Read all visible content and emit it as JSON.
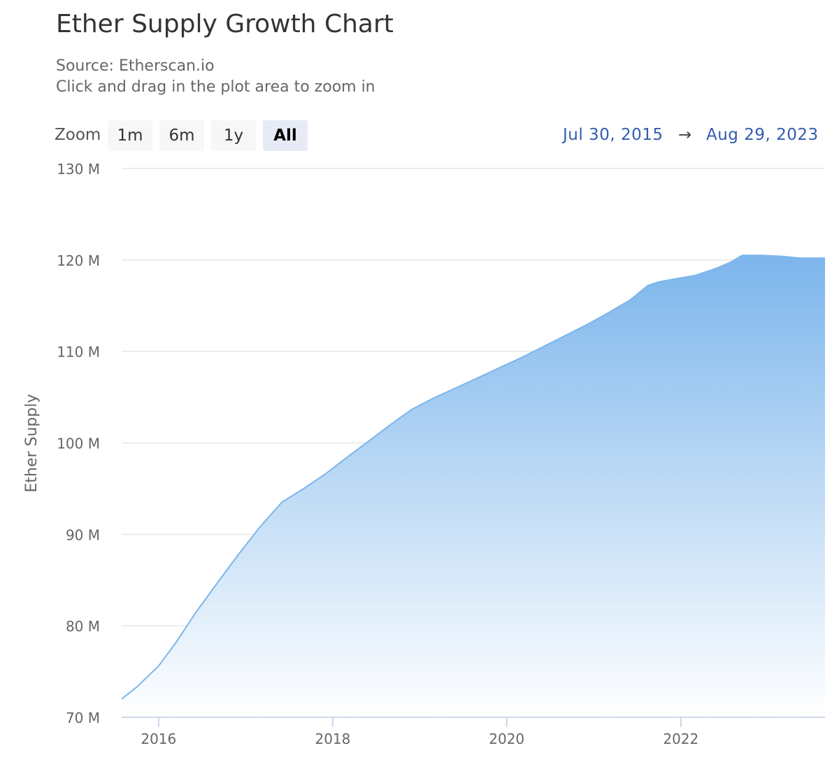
{
  "title": "Ether Supply Growth Chart",
  "subtitle": {
    "source": "Source: Etherscan.io",
    "hint": "Click and drag in the plot area to zoom in"
  },
  "zoom": {
    "label": "Zoom",
    "buttons": [
      "1m",
      "6m",
      "1y",
      "All"
    ],
    "selected": "All"
  },
  "range": {
    "from": "Jul 30, 2015",
    "arrow": "→",
    "to": "Aug 29, 2023"
  },
  "colors": {
    "series_line": "#7cb5ec",
    "fill_top": "#7cb5ec",
    "fill_bottom": "#ffffff",
    "grid": "#e6e6e6",
    "axis_line": "#ccd6eb",
    "range_text": "#335cad"
  },
  "chart_data": {
    "type": "area",
    "title": "Ether Supply Growth Chart",
    "subtitle": "Source: Etherscan.io",
    "ylabel": "Ether Supply",
    "xlabel": "",
    "ylim": [
      70000000,
      130000000
    ],
    "yticks": [
      70000000,
      80000000,
      90000000,
      100000000,
      110000000,
      120000000,
      130000000
    ],
    "ytick_labels": [
      "70 M",
      "80 M",
      "90 M",
      "100 M",
      "110 M",
      "120 M",
      "130 M"
    ],
    "xlim": [
      "2015-07-30",
      "2023-08-29"
    ],
    "xticks": [
      "2016-01-01",
      "2018-01-01",
      "2020-01-01",
      "2022-01-01"
    ],
    "xtick_labels": [
      "2016",
      "2018",
      "2020",
      "2022"
    ],
    "grid": "horizontal",
    "legend": "none",
    "series": [
      {
        "values": [
          [
            "2015-07-30",
            72000000
          ],
          [
            "2015-10-01",
            73300000
          ],
          [
            "2016-01-01",
            75600000
          ],
          [
            "2016-03-15",
            78200000
          ],
          [
            "2016-06-01",
            81300000
          ],
          [
            "2016-09-01",
            84600000
          ],
          [
            "2016-12-01",
            87800000
          ],
          [
            "2017-03-01",
            90800000
          ],
          [
            "2017-06-01",
            93500000
          ],
          [
            "2017-09-01",
            95000000
          ],
          [
            "2017-12-01",
            96600000
          ],
          [
            "2018-03-01",
            98400000
          ],
          [
            "2018-06-01",
            100200000
          ],
          [
            "2018-09-01",
            102000000
          ],
          [
            "2018-12-01",
            103700000
          ],
          [
            "2019-03-01",
            104900000
          ],
          [
            "2019-06-01",
            106000000
          ],
          [
            "2019-09-01",
            107100000
          ],
          [
            "2019-12-01",
            108200000
          ],
          [
            "2020-03-01",
            109300000
          ],
          [
            "2020-06-01",
            110500000
          ],
          [
            "2020-09-01",
            111700000
          ],
          [
            "2020-12-01",
            112900000
          ],
          [
            "2021-03-01",
            114200000
          ],
          [
            "2021-06-01",
            115600000
          ],
          [
            "2021-08-15",
            117200000
          ],
          [
            "2021-10-01",
            117600000
          ],
          [
            "2021-12-01",
            117900000
          ],
          [
            "2022-03-01",
            118300000
          ],
          [
            "2022-06-01",
            119100000
          ],
          [
            "2022-08-01",
            119800000
          ],
          [
            "2022-09-15",
            120500000
          ],
          [
            "2022-12-01",
            120500000
          ],
          [
            "2023-03-01",
            120400000
          ],
          [
            "2023-05-15",
            120200000
          ],
          [
            "2023-08-29",
            120200000
          ]
        ]
      }
    ]
  }
}
